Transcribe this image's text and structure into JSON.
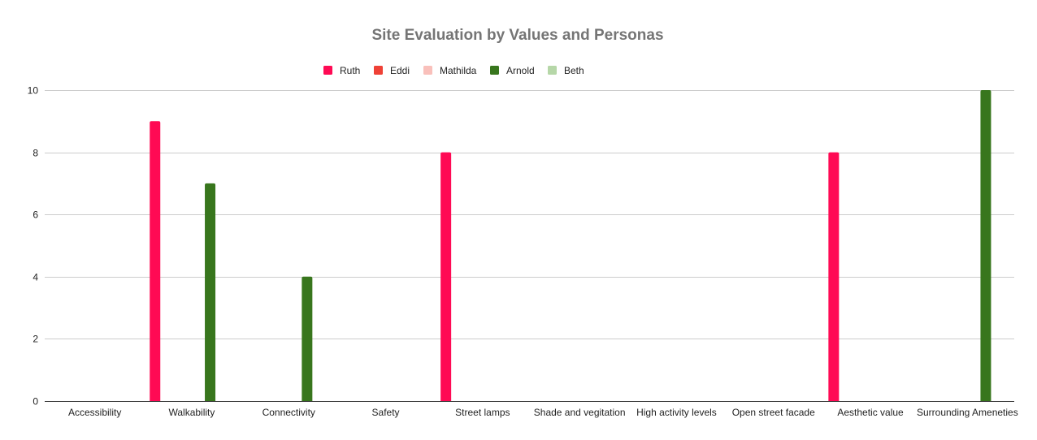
{
  "chart_data": {
    "type": "bar",
    "title": "Site Evaluation by Values and Personas",
    "xlabel": "",
    "ylabel": "",
    "categories": [
      "Accessibility",
      "Walkability",
      "Connectivity",
      "Safety",
      "Street lamps",
      "Shade and vegitation",
      "High activity levels",
      "Open street facade",
      "Aesthetic value",
      "Surrounding Ameneties"
    ],
    "series": [
      {
        "name": "Ruth",
        "color": "#ff0a54",
        "values": [
          0,
          9,
          0,
          0,
          8,
          0,
          0,
          0,
          8,
          0
        ]
      },
      {
        "name": "Eddi",
        "color": "#ef4136",
        "values": [
          0,
          0,
          0,
          0,
          0,
          0,
          0,
          0,
          0,
          0
        ]
      },
      {
        "name": "Mathilda",
        "color": "#f9c0bb",
        "values": [
          0,
          0,
          0,
          0,
          0,
          0,
          0,
          0,
          0,
          0
        ]
      },
      {
        "name": "Arnold",
        "color": "#38761d",
        "values": [
          0,
          7,
          4,
          0,
          0,
          0,
          0,
          0,
          0,
          10
        ]
      },
      {
        "name": "Beth",
        "color": "#b6d7a8",
        "values": [
          0,
          0,
          0,
          0,
          0,
          0,
          0,
          0,
          0,
          0
        ]
      }
    ],
    "ylim": [
      0,
      10
    ],
    "yticks": [
      0,
      2,
      4,
      6,
      8,
      10
    ],
    "grid": true,
    "legend_position": "top"
  }
}
